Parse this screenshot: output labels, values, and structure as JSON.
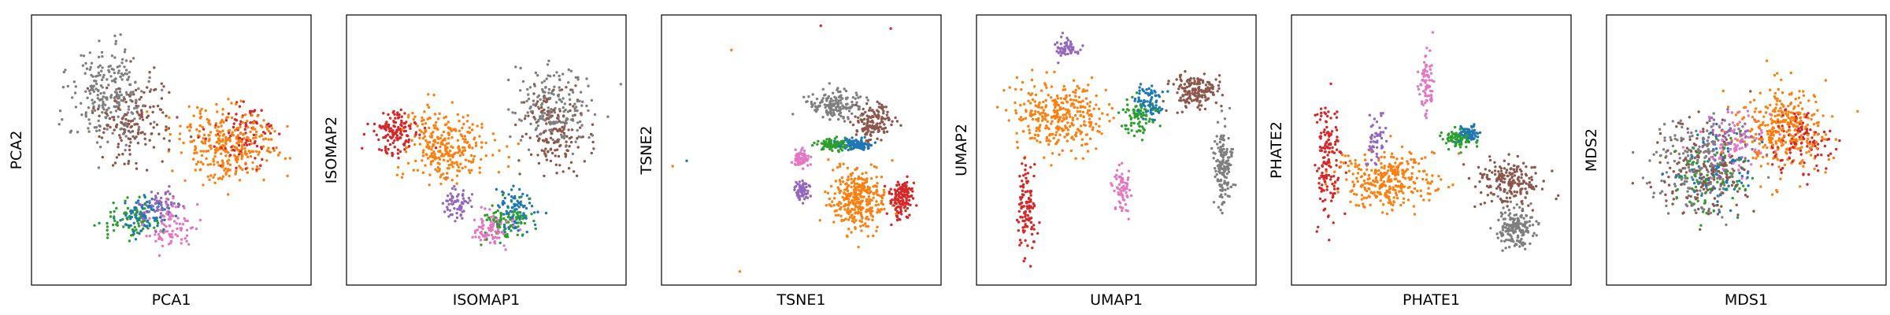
{
  "chart_data": [
    {
      "type": "scatter",
      "xlabel": "PCA1",
      "ylabel": "PCA2",
      "ticks": false,
      "grid": false,
      "legend": "none",
      "clusters": [
        {
          "color": "#7f7f7f",
          "center": [
            0.28,
            0.3
          ],
          "spread": [
            0.13,
            0.16
          ],
          "weight": 0.22
        },
        {
          "color": "#8c564b",
          "center": [
            0.36,
            0.4
          ],
          "spread": [
            0.12,
            0.14
          ],
          "weight": 0.14
        },
        {
          "color": "#ff7f0e",
          "center": [
            0.7,
            0.48
          ],
          "spread": [
            0.16,
            0.12
          ],
          "weight": 0.28
        },
        {
          "color": "#d62728",
          "center": [
            0.76,
            0.45
          ],
          "spread": [
            0.1,
            0.1
          ],
          "weight": 0.08
        },
        {
          "color": "#1f77b4",
          "center": [
            0.4,
            0.74
          ],
          "spread": [
            0.08,
            0.06
          ],
          "weight": 0.08
        },
        {
          "color": "#2ca02c",
          "center": [
            0.36,
            0.76
          ],
          "spread": [
            0.09,
            0.07
          ],
          "weight": 0.07
        },
        {
          "color": "#e377c2",
          "center": [
            0.5,
            0.78
          ],
          "spread": [
            0.08,
            0.07
          ],
          "weight": 0.08
        },
        {
          "color": "#9467bd",
          "center": [
            0.46,
            0.7
          ],
          "spread": [
            0.06,
            0.05
          ],
          "weight": 0.05
        }
      ]
    },
    {
      "type": "scatter",
      "xlabel": "ISOMAP1",
      "ylabel": "ISOMAP2",
      "ticks": false,
      "grid": false,
      "legend": "none",
      "clusters": [
        {
          "color": "#d62728",
          "center": [
            0.18,
            0.44
          ],
          "spread": [
            0.08,
            0.07
          ],
          "weight": 0.12
        },
        {
          "color": "#ff7f0e",
          "center": [
            0.36,
            0.48
          ],
          "spread": [
            0.14,
            0.13
          ],
          "weight": 0.26
        },
        {
          "color": "#7f7f7f",
          "center": [
            0.74,
            0.34
          ],
          "spread": [
            0.12,
            0.12
          ],
          "weight": 0.18
        },
        {
          "color": "#8c564b",
          "center": [
            0.74,
            0.44
          ],
          "spread": [
            0.1,
            0.14
          ],
          "weight": 0.14
        },
        {
          "color": "#1f77b4",
          "center": [
            0.6,
            0.72
          ],
          "spread": [
            0.07,
            0.07
          ],
          "weight": 0.08
        },
        {
          "color": "#2ca02c",
          "center": [
            0.58,
            0.76
          ],
          "spread": [
            0.08,
            0.07
          ],
          "weight": 0.08
        },
        {
          "color": "#e377c2",
          "center": [
            0.52,
            0.8
          ],
          "spread": [
            0.06,
            0.06
          ],
          "weight": 0.08
        },
        {
          "color": "#9467bd",
          "center": [
            0.4,
            0.7
          ],
          "spread": [
            0.05,
            0.05
          ],
          "weight": 0.06
        }
      ]
    },
    {
      "type": "scatter",
      "xlabel": "TSNE1",
      "ylabel": "TSNE2",
      "ticks": false,
      "grid": false,
      "legend": "none",
      "clusters": [
        {
          "color": "#7f7f7f",
          "center": [
            0.62,
            0.33
          ],
          "spread": [
            0.08,
            0.05
          ],
          "weight": 0.14
        },
        {
          "color": "#8c564b",
          "center": [
            0.76,
            0.4
          ],
          "spread": [
            0.06,
            0.07
          ],
          "weight": 0.12
        },
        {
          "color": "#ff7f0e",
          "center": [
            0.7,
            0.68
          ],
          "spread": [
            0.09,
            0.1
          ],
          "weight": 0.3
        },
        {
          "color": "#d62728",
          "center": [
            0.86,
            0.68
          ],
          "spread": [
            0.04,
            0.06
          ],
          "weight": 0.12
        },
        {
          "color": "#e377c2",
          "center": [
            0.5,
            0.53
          ],
          "spread": [
            0.025,
            0.03
          ],
          "weight": 0.07
        },
        {
          "color": "#9467bd",
          "center": [
            0.5,
            0.65
          ],
          "spread": [
            0.025,
            0.03
          ],
          "weight": 0.07
        },
        {
          "color": "#2ca02c",
          "center": [
            0.62,
            0.48
          ],
          "spread": [
            0.05,
            0.02
          ],
          "weight": 0.09
        },
        {
          "color": "#1f77b4",
          "center": [
            0.7,
            0.48
          ],
          "spread": [
            0.05,
            0.02
          ],
          "weight": 0.09
        }
      ],
      "outliers": [
        {
          "color": "#d62728",
          "point": [
            0.57,
            0.04
          ]
        },
        {
          "color": "#d62728",
          "point": [
            0.82,
            0.05
          ]
        },
        {
          "color": "#ff7f0e",
          "point": [
            0.25,
            0.13
          ]
        },
        {
          "color": "#1f77b4",
          "point": [
            0.09,
            0.54
          ]
        },
        {
          "color": "#ff7f0e",
          "point": [
            0.04,
            0.56
          ]
        },
        {
          "color": "#ff7f0e",
          "point": [
            0.28,
            0.95
          ]
        }
      ]
    },
    {
      "type": "scatter",
      "xlabel": "UMAP1",
      "ylabel": "UMAP2",
      "ticks": false,
      "grid": false,
      "legend": "none",
      "clusters": [
        {
          "color": "#ff7f0e",
          "center": [
            0.3,
            0.38
          ],
          "spread": [
            0.14,
            0.12
          ],
          "weight": 0.3
        },
        {
          "color": "#d62728",
          "center": [
            0.18,
            0.72
          ],
          "spread": [
            0.03,
            0.14
          ],
          "weight": 0.1
        },
        {
          "color": "#9467bd",
          "center": [
            0.33,
            0.12
          ],
          "spread": [
            0.04,
            0.04
          ],
          "weight": 0.05
        },
        {
          "color": "#e377c2",
          "center": [
            0.52,
            0.65
          ],
          "spread": [
            0.025,
            0.08
          ],
          "weight": 0.06
        },
        {
          "color": "#2ca02c",
          "center": [
            0.58,
            0.38
          ],
          "spread": [
            0.05,
            0.06
          ],
          "weight": 0.07
        },
        {
          "color": "#1f77b4",
          "center": [
            0.62,
            0.32
          ],
          "spread": [
            0.05,
            0.05
          ],
          "weight": 0.07
        },
        {
          "color": "#8c564b",
          "center": [
            0.78,
            0.28
          ],
          "spread": [
            0.08,
            0.06
          ],
          "weight": 0.15
        },
        {
          "color": "#7f7f7f",
          "center": [
            0.88,
            0.55
          ],
          "spread": [
            0.03,
            0.14
          ],
          "weight": 0.14
        }
      ]
    },
    {
      "type": "scatter",
      "xlabel": "PHATE1",
      "ylabel": "PHATE2",
      "ticks": false,
      "grid": false,
      "legend": "none",
      "clusters": [
        {
          "color": "#d62728",
          "center": [
            0.13,
            0.52
          ],
          "spread": [
            0.04,
            0.2
          ],
          "weight": 0.14
        },
        {
          "color": "#ff7f0e",
          "center": [
            0.35,
            0.62
          ],
          "spread": [
            0.16,
            0.1
          ],
          "weight": 0.28
        },
        {
          "color": "#9467bd",
          "center": [
            0.3,
            0.46
          ],
          "spread": [
            0.03,
            0.09
          ],
          "weight": 0.05
        },
        {
          "color": "#e377c2",
          "center": [
            0.48,
            0.24
          ],
          "spread": [
            0.025,
            0.12
          ],
          "weight": 0.07
        },
        {
          "color": "#2ca02c",
          "center": [
            0.6,
            0.46
          ],
          "spread": [
            0.05,
            0.03
          ],
          "weight": 0.07
        },
        {
          "color": "#1f77b4",
          "center": [
            0.63,
            0.44
          ],
          "spread": [
            0.04,
            0.03
          ],
          "weight": 0.06
        },
        {
          "color": "#8c564b",
          "center": [
            0.78,
            0.62
          ],
          "spread": [
            0.1,
            0.08
          ],
          "weight": 0.17
        },
        {
          "color": "#7f7f7f",
          "center": [
            0.8,
            0.78
          ],
          "spread": [
            0.06,
            0.07
          ],
          "weight": 0.16
        }
      ]
    },
    {
      "type": "scatter",
      "xlabel": "MDS1",
      "ylabel": "MDS2",
      "ticks": false,
      "grid": false,
      "legend": "none",
      "clusters": [
        {
          "color": "#7f7f7f",
          "center": [
            0.32,
            0.55
          ],
          "spread": [
            0.14,
            0.16
          ],
          "weight": 0.18
        },
        {
          "color": "#8c564b",
          "center": [
            0.34,
            0.58
          ],
          "spread": [
            0.14,
            0.15
          ],
          "weight": 0.16
        },
        {
          "color": "#ff7f0e",
          "center": [
            0.63,
            0.42
          ],
          "spread": [
            0.15,
            0.15
          ],
          "weight": 0.3
        },
        {
          "color": "#d62728",
          "center": [
            0.7,
            0.46
          ],
          "spread": [
            0.1,
            0.12
          ],
          "weight": 0.1
        },
        {
          "color": "#1f77b4",
          "center": [
            0.4,
            0.58
          ],
          "spread": [
            0.12,
            0.12
          ],
          "weight": 0.07
        },
        {
          "color": "#2ca02c",
          "center": [
            0.38,
            0.6
          ],
          "spread": [
            0.12,
            0.12
          ],
          "weight": 0.07
        },
        {
          "color": "#e377c2",
          "center": [
            0.45,
            0.48
          ],
          "spread": [
            0.12,
            0.12
          ],
          "weight": 0.07
        },
        {
          "color": "#9467bd",
          "center": [
            0.44,
            0.46
          ],
          "spread": [
            0.1,
            0.1
          ],
          "weight": 0.05
        }
      ]
    }
  ]
}
